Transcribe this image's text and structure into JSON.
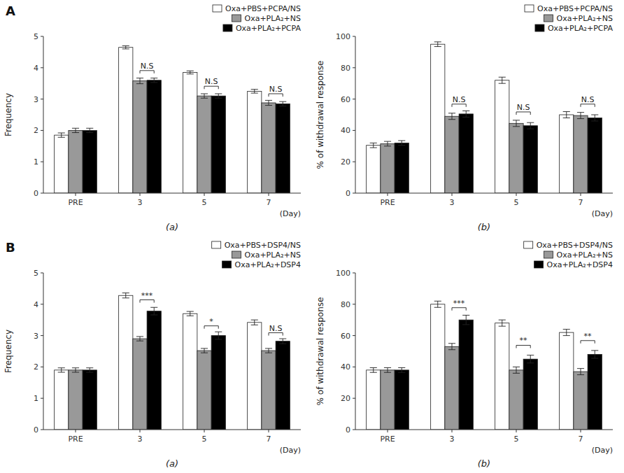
{
  "chart_data": [
    {
      "type": "bar",
      "panel_label": "A",
      "subtitle": "(a)",
      "ylabel": "Frequency",
      "xlabel": "(Day)",
      "categories": [
        "PRE",
        "3",
        "5",
        "7"
      ],
      "series": [
        {
          "name": "Oxa+PBS+PCPA/NS",
          "color": "white",
          "values": [
            1.85,
            4.65,
            3.85,
            3.25
          ],
          "errors": [
            0.07,
            0.05,
            0.05,
            0.06
          ]
        },
        {
          "name": "Oxa+PLA₂+NS",
          "color": "#999999",
          "values": [
            2.0,
            3.58,
            3.1,
            2.88
          ],
          "errors": [
            0.07,
            0.09,
            0.07,
            0.08
          ]
        },
        {
          "name": "Oxa+PLA₂+PCPA",
          "color": "black",
          "values": [
            2.0,
            3.6,
            3.1,
            2.85
          ],
          "errors": [
            0.07,
            0.07,
            0.07,
            0.07
          ]
        }
      ],
      "annotations": [
        {
          "category": "3",
          "series": [
            1,
            2
          ],
          "text": "N.S",
          "y": 3.82
        },
        {
          "category": "5",
          "series": [
            1,
            2
          ],
          "text": "N.S",
          "y": 3.32
        },
        {
          "category": "7",
          "series": [
            1,
            2
          ],
          "text": "N.S",
          "y": 3.08
        }
      ],
      "ylim": [
        0,
        5
      ],
      "yticks": [
        0,
        1,
        2,
        3,
        4,
        5
      ],
      "legend": "upper right",
      "grid": false
    },
    {
      "type": "bar",
      "subtitle": "(b)",
      "ylabel": "% of withdrawal response",
      "xlabel": "(Day)",
      "categories": [
        "PRE",
        "3",
        "5",
        "7"
      ],
      "series": [
        {
          "name": "Oxa+PBS+PCPA/NS",
          "color": "white",
          "values": [
            30.5,
            95.0,
            72.0,
            50.0
          ],
          "errors": [
            1.5,
            1.5,
            2.0,
            2.0
          ]
        },
        {
          "name": "Oxa+PLA₂+NS",
          "color": "#999999",
          "values": [
            31.5,
            49.0,
            44.5,
            49.5
          ],
          "errors": [
            1.5,
            2.0,
            2.0,
            2.0
          ]
        },
        {
          "name": "Oxa+PLA₂+PCPA",
          "color": "black",
          "values": [
            32.0,
            50.5,
            43.0,
            48.0
          ],
          "errors": [
            1.5,
            2.0,
            2.0,
            2.0
          ]
        }
      ],
      "annotations": [
        {
          "category": "3",
          "series": [
            1,
            2
          ],
          "text": "N.S",
          "y": 55
        },
        {
          "category": "5",
          "series": [
            1,
            2
          ],
          "text": "N.S",
          "y": 50
        },
        {
          "category": "7",
          "series": [
            1,
            2
          ],
          "text": "N.S",
          "y": 55
        }
      ],
      "ylim": [
        0,
        100
      ],
      "yticks": [
        0,
        20,
        40,
        60,
        80,
        100
      ],
      "legend": "upper right",
      "grid": false
    },
    {
      "type": "bar",
      "panel_label": "B",
      "subtitle": "(a)",
      "ylabel": "Frequency",
      "xlabel": "(Day)",
      "categories": [
        "PRE",
        "3",
        "5",
        "7"
      ],
      "series": [
        {
          "name": "Oxa+PBS+DSP4/NS",
          "color": "white",
          "values": [
            1.9,
            4.28,
            3.7,
            3.42
          ],
          "errors": [
            0.07,
            0.08,
            0.07,
            0.08
          ]
        },
        {
          "name": "Oxa+PLA₂+NS",
          "color": "#999999",
          "values": [
            1.9,
            2.9,
            2.52,
            2.52
          ],
          "errors": [
            0.07,
            0.07,
            0.07,
            0.07
          ]
        },
        {
          "name": "Oxa+PLA₂+DSP4",
          "color": "black",
          "values": [
            1.9,
            3.78,
            3.0,
            2.82
          ],
          "errors": [
            0.07,
            0.12,
            0.12,
            0.08
          ]
        }
      ],
      "annotations": [
        {
          "category": "3",
          "series": [
            1,
            2
          ],
          "text": "***",
          "y": 4.05
        },
        {
          "category": "5",
          "series": [
            1,
            2
          ],
          "text": "*",
          "y": 3.22
        },
        {
          "category": "7",
          "series": [
            1,
            2
          ],
          "text": "N.S",
          "y": 3.0
        }
      ],
      "ylim": [
        0,
        5
      ],
      "yticks": [
        0,
        1,
        2,
        3,
        4,
        5
      ],
      "legend": "upper right",
      "grid": false
    },
    {
      "type": "bar",
      "subtitle": "(b)",
      "ylabel": "% of withdrawal response",
      "xlabel": "(Day)",
      "categories": [
        "PRE",
        "3",
        "5",
        "7"
      ],
      "series": [
        {
          "name": "Oxa+PBS+DSP4/NS",
          "color": "white",
          "values": [
            38.0,
            80.0,
            68.0,
            62.0
          ],
          "errors": [
            1.5,
            2.0,
            2.0,
            2.0
          ]
        },
        {
          "name": "Oxa+PLA₂+NS",
          "color": "#999999",
          "values": [
            38.0,
            53.0,
            38.0,
            37.0
          ],
          "errors": [
            1.5,
            2.0,
            2.0,
            2.0
          ]
        },
        {
          "name": "Oxa+PLA₂+DSP4",
          "color": "black",
          "values": [
            38.0,
            70.0,
            45.0,
            48.0
          ],
          "errors": [
            1.5,
            3.0,
            2.5,
            2.5
          ]
        }
      ],
      "annotations": [
        {
          "category": "3",
          "series": [
            1,
            2
          ],
          "text": "***",
          "y": 76
        },
        {
          "category": "5",
          "series": [
            1,
            2
          ],
          "text": "**",
          "y": 52
        },
        {
          "category": "7",
          "series": [
            1,
            2
          ],
          "text": "**",
          "y": 55
        }
      ],
      "ylim": [
        0,
        100
      ],
      "yticks": [
        0,
        20,
        40,
        60,
        80,
        100
      ],
      "legend": "upper right",
      "grid": false
    }
  ]
}
